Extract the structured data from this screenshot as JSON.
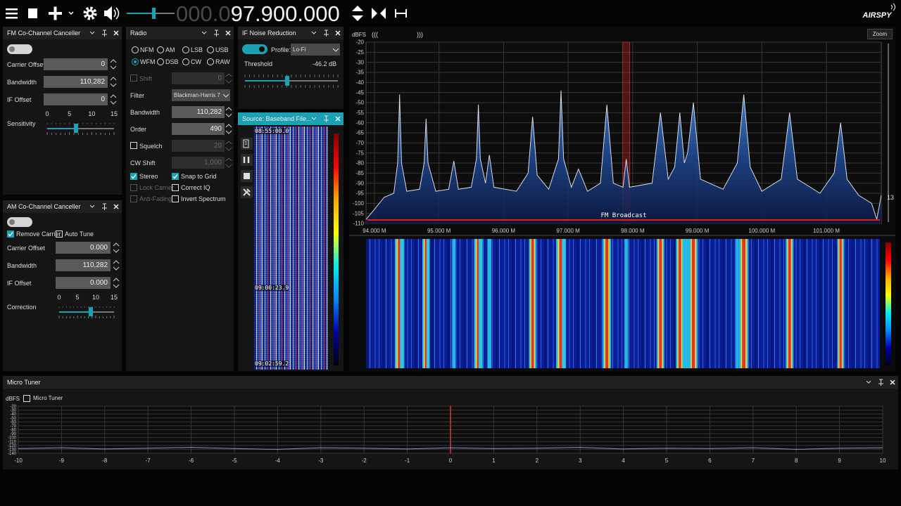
{
  "toolbar": {
    "frequency_prefix": "000.0",
    "frequency": "97.900.000",
    "logo": "AIRSPY"
  },
  "fm_canceller": {
    "title": "FM Co-Channel Canceller",
    "enabled": false,
    "fields": [
      {
        "label": "Carrier Offset",
        "value": "0"
      },
      {
        "label": "Bandwidth",
        "value": "110,282"
      },
      {
        "label": "IF Offset",
        "value": "0"
      }
    ],
    "slider_label": "Sensitivity",
    "slider_ticks": [
      0,
      5,
      10,
      15
    ]
  },
  "am_canceller": {
    "title": "AM Co-Channel Canceller",
    "enabled": false,
    "checkboxes": [
      {
        "label": "Remove Carrier",
        "checked": true
      },
      {
        "label": "Auto Tune",
        "checked": false
      }
    ],
    "fields": [
      {
        "label": "Carrier Offset",
        "value": "0.000"
      },
      {
        "label": "Bandwidth",
        "value": "110,282"
      },
      {
        "label": "IF Offset",
        "value": "0.000"
      }
    ],
    "slider_label": "Correction",
    "slider_ticks": [
      0,
      5,
      10,
      15
    ]
  },
  "radio": {
    "title": "Radio",
    "modes": [
      {
        "label": "NFM",
        "selected": false
      },
      {
        "label": "AM",
        "selected": false
      },
      {
        "label": "LSB",
        "selected": false
      },
      {
        "label": "USB",
        "selected": false
      },
      {
        "label": "WFM",
        "selected": true
      },
      {
        "label": "DSB",
        "selected": false
      },
      {
        "label": "CW",
        "selected": false
      },
      {
        "label": "RAW",
        "selected": false
      }
    ],
    "rows": [
      {
        "label": "Shift",
        "value": "0",
        "has_checkbox": true,
        "label_enabled": false,
        "enabled": false,
        "dropdown": false
      },
      {
        "label": "Filter",
        "value": "Blackman-Harris 7",
        "has_checkbox": false,
        "label_enabled": true,
        "enabled": true,
        "dropdown": true
      },
      {
        "label": "Bandwidth",
        "value": "110,282",
        "has_checkbox": false,
        "label_enabled": true,
        "enabled": true,
        "dropdown": false
      },
      {
        "label": "Order",
        "value": "490",
        "has_checkbox": false,
        "label_enabled": true,
        "enabled": true,
        "dropdown": false
      },
      {
        "label": "Squelch",
        "value": "20",
        "has_checkbox": true,
        "label_enabled": true,
        "enabled": false,
        "dropdown": false
      },
      {
        "label": "CW Shift",
        "value": "1,000",
        "has_checkbox": false,
        "label_enabled": true,
        "enabled": false,
        "dropdown": false
      }
    ],
    "options": [
      {
        "label": "Stereo",
        "checked": true,
        "enabled": true
      },
      {
        "label": "Snap to Grid",
        "checked": true,
        "enabled": true
      },
      {
        "label": "Lock Carrier",
        "checked": false,
        "enabled": false
      },
      {
        "label": "Correct IQ",
        "checked": false,
        "enabled": true
      },
      {
        "label": "Anti-Fading",
        "checked": false,
        "enabled": false
      },
      {
        "label": "Invert Spectrum",
        "checked": false,
        "enabled": true
      }
    ]
  },
  "noise_reduction": {
    "title": "IF Noise Reduction",
    "enabled": true,
    "profile_label": "Profile:",
    "profile": "Lo-Fi",
    "threshold_label": "Threshold",
    "threshold": "-46.2 dB"
  },
  "source": {
    "title": "Source: Baseband File...",
    "timestamps": [
      "08:55:00.0",
      "09:00:23.9",
      "09:02:59.2"
    ]
  },
  "spectrum": {
    "zoom": "Zoom",
    "left_marker": "(((",
    "right_marker": ")))",
    "side_value": "13"
  },
  "micro_tuner": {
    "title": "Micro Tuner"
  },
  "chart_data": [
    {
      "type": "line",
      "y_label": "dBFS",
      "annotation": "FM Broadcast",
      "x": [
        93.87,
        94.0,
        94.15,
        94.3,
        94.36,
        94.39,
        94.42,
        94.5,
        94.7,
        94.77,
        94.8,
        94.83,
        94.95,
        95.15,
        95.23,
        95.3,
        95.5,
        95.58,
        95.61,
        95.64,
        95.72,
        95.78,
        95.85,
        96.2,
        96.38,
        96.45,
        96.52,
        96.7,
        96.85,
        96.89,
        96.93,
        97.05,
        97.16,
        97.3,
        97.5,
        97.6,
        97.7,
        97.85,
        97.9,
        97.95,
        98.3,
        98.43,
        98.55,
        98.65,
        98.73,
        98.8,
        98.85,
        98.94,
        99.05,
        99.4,
        99.62,
        99.72,
        99.82,
        100.0,
        100.3,
        100.43,
        100.55,
        100.9,
        101.12,
        101.22,
        101.32,
        101.5,
        101.7,
        101.78,
        101.85
      ],
      "values": [
        -108,
        -103,
        -97,
        -95,
        -80,
        -46,
        -80,
        -94,
        -93,
        -80,
        -58,
        -80,
        -94,
        -93,
        -79,
        -93,
        -92,
        -78,
        -51,
        -78,
        -90,
        -76,
        -92,
        -94,
        -85,
        -57,
        -86,
        -93,
        -78,
        -44,
        -78,
        -92,
        -83,
        -94,
        -90,
        -51,
        -90,
        -92,
        -78,
        -92,
        -90,
        -55,
        -88,
        -82,
        -55,
        -80,
        -75,
        -50,
        -88,
        -93,
        -80,
        -46,
        -82,
        -94,
        -88,
        -55,
        -88,
        -95,
        -85,
        -60,
        -88,
        -96,
        -100,
        -108,
        -96
      ],
      "xlim": [
        93.87,
        101.85
      ],
      "ylim": [
        -110,
        -20
      ],
      "xticks": [
        {
          "value": 94,
          "label": "94.000 M"
        },
        {
          "value": 95,
          "label": "95.000 M"
        },
        {
          "value": 96,
          "label": "96.000 M"
        },
        {
          "value": 97,
          "label": "97.000 M"
        },
        {
          "value": 98,
          "label": "98.000 M"
        },
        {
          "value": 99,
          "label": "99.000 M"
        },
        {
          "value": 100,
          "label": "100.000 M"
        },
        {
          "value": 101,
          "label": "101.000 M"
        }
      ],
      "yticks": [
        -20,
        -25,
        -30,
        -35,
        -40,
        -45,
        -50,
        -55,
        -60,
        -65,
        -70,
        -75,
        -80,
        -85,
        -90,
        -95,
        -100,
        -105,
        -110
      ],
      "color": "#d6d9e4",
      "grid": true,
      "cursor": 97.9
    },
    {
      "type": "line",
      "y_label": "dBFS",
      "legend": "Micro Tuner",
      "x": [
        -10,
        -9,
        -8,
        -7,
        -6,
        -5,
        -4,
        -3,
        -2,
        -1,
        0,
        1,
        2,
        3,
        4,
        5,
        6,
        7,
        8,
        9,
        10
      ],
      "values": [
        -128,
        -126,
        -129,
        -127,
        -125,
        -128,
        -130,
        -126,
        -127,
        -129,
        -126,
        -128,
        -127,
        -125,
        -129,
        -127,
        -128,
        -126,
        -130,
        -127,
        -126
      ],
      "xlim": [
        -10,
        10
      ],
      "ylim": [
        -140,
        -20
      ],
      "xticks": [
        -10,
        -9,
        -8,
        -7,
        -6,
        -5,
        -4,
        -3,
        -2,
        -1,
        0,
        1,
        2,
        3,
        4,
        5,
        6,
        7,
        8,
        9,
        10
      ],
      "yticks": [
        -20,
        -30,
        -40,
        -50,
        -60,
        -70,
        -80,
        -90,
        -100,
        -110,
        -120,
        -130,
        -140
      ],
      "color": "#8c92d8",
      "grid": true,
      "cursor": 0
    }
  ]
}
